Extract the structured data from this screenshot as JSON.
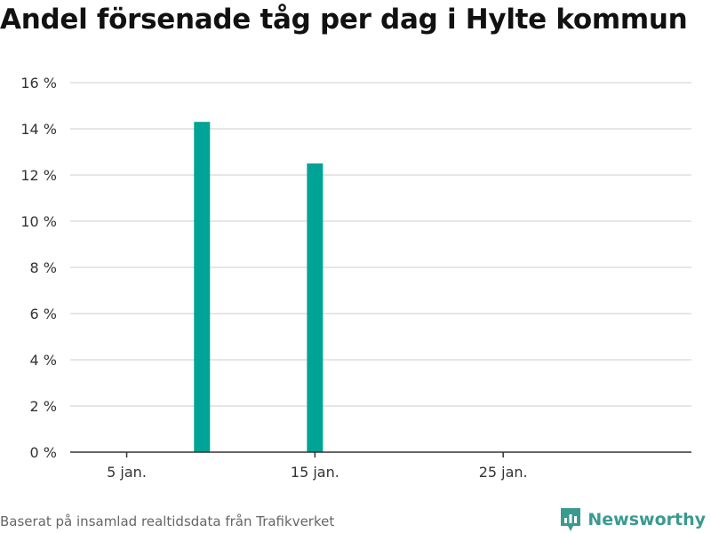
{
  "chart_data": {
    "type": "bar",
    "title": "Andel försenade tåg per dag i Hylte kommun",
    "xlabel": "",
    "ylabel": "",
    "x": [
      "2024-01-09",
      "2024-01-15"
    ],
    "values": [
      14.3,
      12.5
    ],
    "x_range": [
      "2024-01-02",
      "2024-02-04"
    ],
    "ylim": [
      0,
      16
    ],
    "yticks": [
      0,
      2,
      4,
      6,
      8,
      10,
      12,
      14,
      16
    ],
    "ytick_labels": [
      "0 %",
      "2 %",
      "4 %",
      "6 %",
      "8 %",
      "10 %",
      "12 %",
      "14 %",
      "16 %"
    ],
    "xticks": [
      "2024-01-05",
      "2024-01-15",
      "2024-01-25"
    ],
    "xtick_labels": [
      "5 jan.",
      "15 jan.",
      "25 jan."
    ],
    "grid": true,
    "bar_color": "#00a396"
  },
  "source": "Baserat på insamlad realtidsdata från Trafikverket",
  "brand": {
    "name": "Newsworthy",
    "icon": "newsworthy-logo-icon",
    "color": "#3a9a90"
  }
}
